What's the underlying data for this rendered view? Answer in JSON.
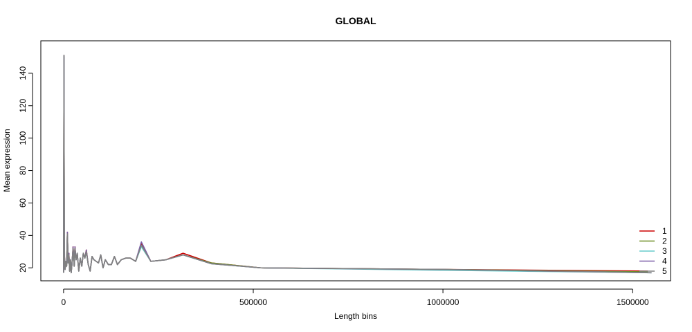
{
  "chart_data": {
    "type": "line",
    "title": "GLOBAL",
    "xlabel": "Length bins",
    "ylabel": "Mean expression",
    "xlim": [
      -60000,
      1600000
    ],
    "ylim": [
      12,
      160
    ],
    "xticks": [
      0,
      500000,
      1000000,
      1500000
    ],
    "yticks": [
      20,
      40,
      60,
      80,
      100,
      120,
      140
    ],
    "legend_position": "bottom-right",
    "series": [
      {
        "name": "1",
        "color": "#cc0000",
        "points": [
          [
            0,
            17
          ],
          [
            1000,
            150
          ],
          [
            2000,
            29
          ],
          [
            4000,
            19
          ],
          [
            6000,
            24
          ],
          [
            8000,
            21
          ],
          [
            10000,
            42
          ],
          [
            12000,
            23
          ],
          [
            14000,
            29
          ],
          [
            16000,
            18
          ],
          [
            18000,
            25
          ],
          [
            20000,
            17
          ],
          [
            22000,
            22
          ],
          [
            25000,
            33
          ],
          [
            28000,
            21
          ],
          [
            30000,
            33
          ],
          [
            33000,
            25
          ],
          [
            36000,
            29
          ],
          [
            40000,
            18
          ],
          [
            44000,
            26
          ],
          [
            48000,
            21
          ],
          [
            52000,
            29
          ],
          [
            56000,
            26
          ],
          [
            60000,
            31
          ],
          [
            65000,
            22
          ],
          [
            70000,
            18
          ],
          [
            75000,
            27
          ],
          [
            80000,
            25
          ],
          [
            86000,
            24
          ],
          [
            92000,
            23
          ],
          [
            98000,
            28
          ],
          [
            104000,
            20
          ],
          [
            110000,
            25
          ],
          [
            118000,
            22
          ],
          [
            126000,
            22
          ],
          [
            134000,
            27
          ],
          [
            142000,
            22
          ],
          [
            152000,
            25
          ],
          [
            164000,
            26
          ],
          [
            176000,
            26
          ],
          [
            190000,
            24
          ],
          [
            205000,
            35
          ],
          [
            230000,
            24
          ],
          [
            270000,
            25
          ],
          [
            315000,
            29
          ],
          [
            390000,
            23
          ],
          [
            520000,
            20
          ],
          [
            1000000,
            19
          ],
          [
            1540000,
            18
          ]
        ]
      },
      {
        "name": "2",
        "color": "#6b8e23",
        "points": [
          [
            0,
            17
          ],
          [
            1000,
            151
          ],
          [
            2000,
            28
          ],
          [
            4000,
            19
          ],
          [
            6000,
            24
          ],
          [
            8000,
            21
          ],
          [
            10000,
            41
          ],
          [
            12000,
            23
          ],
          [
            14000,
            28
          ],
          [
            16000,
            18
          ],
          [
            18000,
            25
          ],
          [
            20000,
            17
          ],
          [
            22000,
            22
          ],
          [
            25000,
            32
          ],
          [
            28000,
            21
          ],
          [
            30000,
            32
          ],
          [
            33000,
            25
          ],
          [
            36000,
            29
          ],
          [
            40000,
            18
          ],
          [
            44000,
            26
          ],
          [
            48000,
            21
          ],
          [
            52000,
            29
          ],
          [
            56000,
            26
          ],
          [
            60000,
            30
          ],
          [
            65000,
            22
          ],
          [
            70000,
            18
          ],
          [
            75000,
            27
          ],
          [
            80000,
            25
          ],
          [
            86000,
            24
          ],
          [
            92000,
            23
          ],
          [
            98000,
            28
          ],
          [
            104000,
            20
          ],
          [
            110000,
            25
          ],
          [
            118000,
            22
          ],
          [
            126000,
            22
          ],
          [
            134000,
            27
          ],
          [
            142000,
            22
          ],
          [
            152000,
            25
          ],
          [
            164000,
            26
          ],
          [
            176000,
            26
          ],
          [
            190000,
            24
          ],
          [
            205000,
            34
          ],
          [
            230000,
            24
          ],
          [
            270000,
            25
          ],
          [
            315000,
            28
          ],
          [
            390000,
            23
          ],
          [
            520000,
            20
          ],
          [
            1000000,
            19
          ],
          [
            1540000,
            17.5
          ]
        ]
      },
      {
        "name": "3",
        "color": "#66cccc",
        "points": [
          [
            0,
            17
          ],
          [
            1000,
            150
          ],
          [
            2000,
            28
          ],
          [
            4000,
            19
          ],
          [
            6000,
            24
          ],
          [
            8000,
            21
          ],
          [
            10000,
            41
          ],
          [
            12000,
            23
          ],
          [
            14000,
            28
          ],
          [
            16000,
            18
          ],
          [
            18000,
            25
          ],
          [
            20000,
            17
          ],
          [
            22000,
            22
          ],
          [
            25000,
            32
          ],
          [
            28000,
            21
          ],
          [
            30000,
            32
          ],
          [
            33000,
            25
          ],
          [
            36000,
            29
          ],
          [
            40000,
            18
          ],
          [
            44000,
            26
          ],
          [
            48000,
            21
          ],
          [
            52000,
            29
          ],
          [
            56000,
            26
          ],
          [
            60000,
            30
          ],
          [
            65000,
            22
          ],
          [
            70000,
            18
          ],
          [
            75000,
            27
          ],
          [
            80000,
            25
          ],
          [
            86000,
            24
          ],
          [
            92000,
            23
          ],
          [
            98000,
            28
          ],
          [
            104000,
            20
          ],
          [
            110000,
            25
          ],
          [
            118000,
            22
          ],
          [
            126000,
            22
          ],
          [
            134000,
            27
          ],
          [
            142000,
            22
          ],
          [
            152000,
            25
          ],
          [
            164000,
            26
          ],
          [
            176000,
            26
          ],
          [
            190000,
            24
          ],
          [
            205000,
            33
          ],
          [
            230000,
            24
          ],
          [
            270000,
            25
          ],
          [
            315000,
            28
          ],
          [
            390000,
            22.5
          ],
          [
            520000,
            20
          ],
          [
            1000000,
            18.5
          ],
          [
            1550000,
            17
          ]
        ]
      },
      {
        "name": "4",
        "color": "#7b5ea7",
        "points": [
          [
            0,
            17
          ],
          [
            1000,
            151
          ],
          [
            2000,
            29
          ],
          [
            4000,
            19
          ],
          [
            6000,
            24
          ],
          [
            8000,
            21
          ],
          [
            10000,
            42
          ],
          [
            12000,
            23
          ],
          [
            14000,
            29
          ],
          [
            16000,
            18
          ],
          [
            18000,
            25
          ],
          [
            20000,
            17
          ],
          [
            22000,
            22
          ],
          [
            25000,
            33
          ],
          [
            28000,
            21
          ],
          [
            30000,
            33
          ],
          [
            33000,
            25
          ],
          [
            36000,
            29
          ],
          [
            40000,
            18
          ],
          [
            44000,
            26
          ],
          [
            48000,
            21
          ],
          [
            52000,
            29
          ],
          [
            56000,
            26
          ],
          [
            60000,
            31
          ],
          [
            65000,
            22
          ],
          [
            70000,
            18
          ],
          [
            75000,
            27
          ],
          [
            80000,
            25
          ],
          [
            86000,
            24
          ],
          [
            92000,
            23
          ],
          [
            98000,
            28
          ],
          [
            104000,
            20
          ],
          [
            110000,
            25
          ],
          [
            118000,
            22
          ],
          [
            126000,
            22
          ],
          [
            134000,
            27
          ],
          [
            142000,
            22
          ],
          [
            152000,
            25
          ],
          [
            164000,
            26
          ],
          [
            176000,
            26
          ],
          [
            190000,
            24
          ],
          [
            205000,
            36
          ],
          [
            230000,
            24
          ],
          [
            270000,
            25
          ],
          [
            315000,
            28
          ],
          [
            390000,
            22.5
          ],
          [
            520000,
            20
          ],
          [
            1000000,
            19
          ],
          [
            1550000,
            17
          ]
        ]
      },
      {
        "name": "5",
        "color": "#808080",
        "points": [
          [
            0,
            17
          ],
          [
            1000,
            151
          ],
          [
            2000,
            28
          ],
          [
            4000,
            19
          ],
          [
            6000,
            24
          ],
          [
            8000,
            21
          ],
          [
            10000,
            41
          ],
          [
            12000,
            23
          ],
          [
            14000,
            28
          ],
          [
            16000,
            18
          ],
          [
            18000,
            25
          ],
          [
            20000,
            17
          ],
          [
            22000,
            22
          ],
          [
            25000,
            32
          ],
          [
            28000,
            21
          ],
          [
            30000,
            32
          ],
          [
            33000,
            25
          ],
          [
            36000,
            29
          ],
          [
            40000,
            18
          ],
          [
            44000,
            26
          ],
          [
            48000,
            21
          ],
          [
            52000,
            29
          ],
          [
            56000,
            26
          ],
          [
            60000,
            30
          ],
          [
            65000,
            22
          ],
          [
            70000,
            18
          ],
          [
            75000,
            27
          ],
          [
            80000,
            25
          ],
          [
            86000,
            24
          ],
          [
            92000,
            23
          ],
          [
            98000,
            28
          ],
          [
            104000,
            20
          ],
          [
            110000,
            25
          ],
          [
            118000,
            22
          ],
          [
            126000,
            22
          ],
          [
            134000,
            27
          ],
          [
            142000,
            22
          ],
          [
            152000,
            25
          ],
          [
            164000,
            26
          ],
          [
            176000,
            26
          ],
          [
            190000,
            24
          ],
          [
            205000,
            34
          ],
          [
            230000,
            24
          ],
          [
            270000,
            25
          ],
          [
            315000,
            28
          ],
          [
            390000,
            22.5
          ],
          [
            520000,
            20
          ],
          [
            1000000,
            19
          ],
          [
            1550000,
            17
          ]
        ]
      }
    ]
  }
}
